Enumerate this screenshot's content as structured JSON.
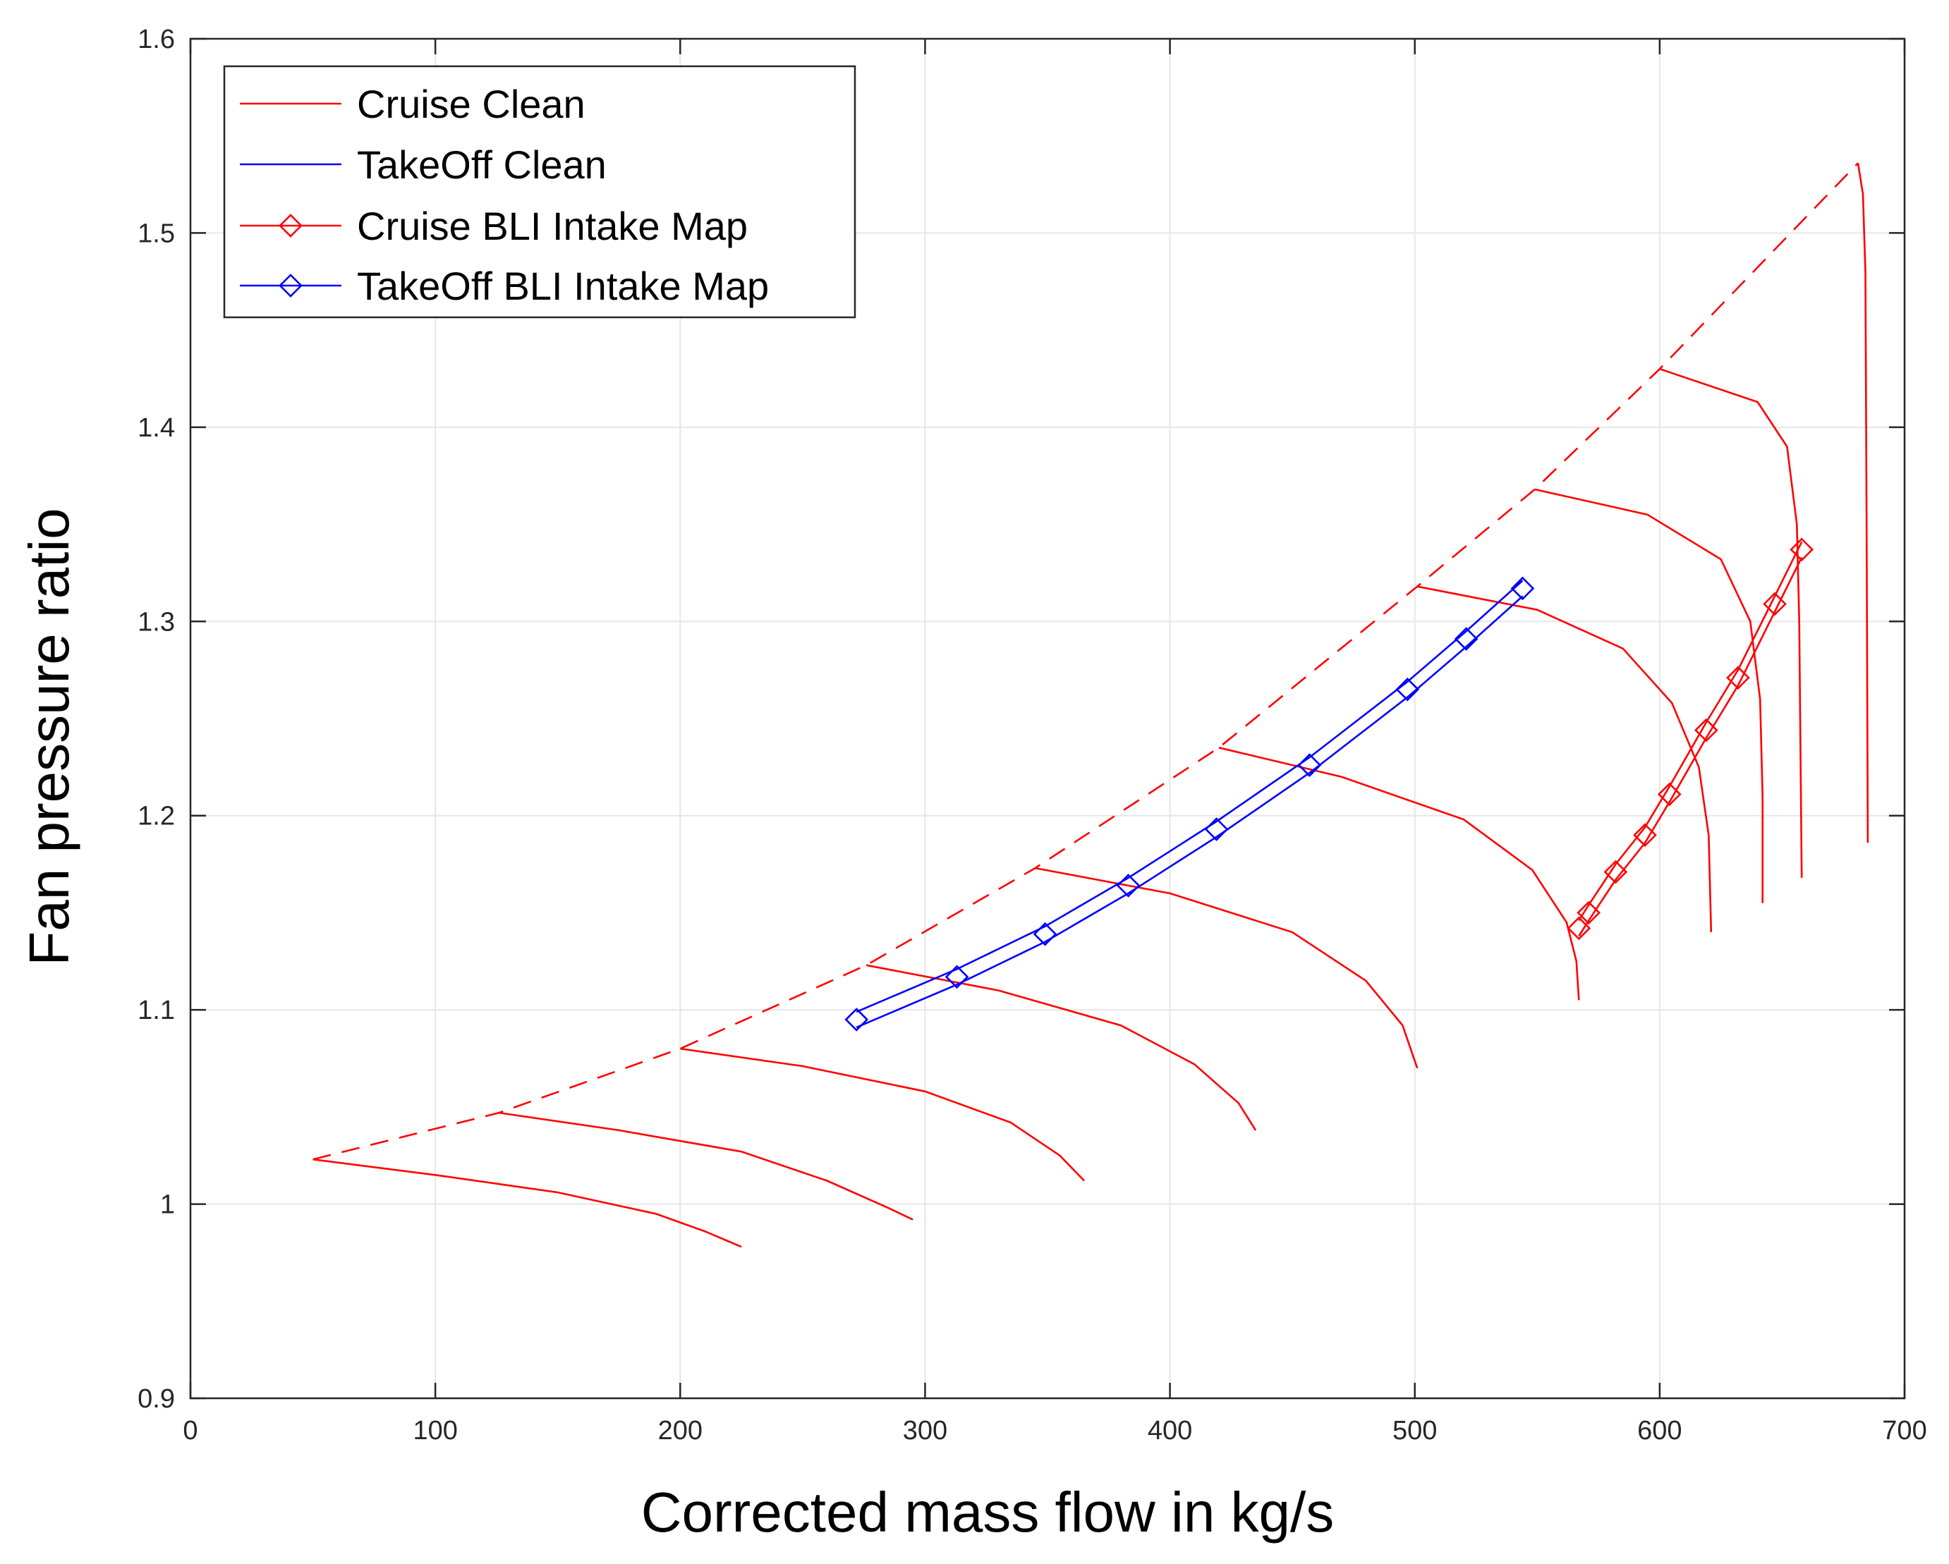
{
  "chart_data": {
    "type": "line",
    "xlabel": "Corrected mass flow in kg/s",
    "ylabel": "Fan pressure ratio",
    "xlim": [
      0,
      700
    ],
    "ylim": [
      0.9,
      1.6
    ],
    "xticks": [
      0,
      100,
      200,
      300,
      400,
      500,
      600,
      700
    ],
    "yticks": [
      0.9,
      1,
      1.1,
      1.2,
      1.3,
      1.4,
      1.5,
      1.6
    ],
    "xtick_labels": [
      "0",
      "100",
      "200",
      "300",
      "400",
      "500",
      "600",
      "700"
    ],
    "ytick_labels": [
      "0.9",
      "1",
      "1.1",
      "1.2",
      "1.3",
      "1.4",
      "1.5",
      "1.6"
    ],
    "grid": true,
    "legend_position": "top-left",
    "colors": {
      "red": "#ff0000",
      "blue": "#0000ff",
      "grid": "#e6e6e6",
      "axis": "#262626"
    },
    "legend": [
      {
        "label": "Cruise Clean",
        "color": "#ff0000",
        "marker": "none"
      },
      {
        "label": "TakeOff Clean",
        "color": "#0000ff",
        "marker": "none"
      },
      {
        "label": "Cruise BLI Intake Map",
        "color": "#ff0000",
        "marker": "diamond"
      },
      {
        "label": "TakeOff BLI Intake Map",
        "color": "#0000ff",
        "marker": "diamond"
      }
    ],
    "surge_line": {
      "color": "#ff0000",
      "style": "dashed",
      "x": [
        50,
        126,
        200,
        276,
        345,
        420,
        501,
        549,
        600,
        681
      ],
      "y": [
        1.023,
        1.047,
        1.08,
        1.123,
        1.173,
        1.235,
        1.318,
        1.368,
        1.43,
        1.536
      ]
    },
    "speed_lines": [
      {
        "x": [
          50,
          100,
          150,
          190,
          210,
          225
        ],
        "y": [
          1.023,
          1.015,
          1.006,
          0.995,
          0.986,
          0.978
        ]
      },
      {
        "x": [
          126,
          175,
          225,
          260,
          285,
          295
        ],
        "y": [
          1.047,
          1.038,
          1.027,
          1.012,
          0.998,
          0.992
        ]
      },
      {
        "x": [
          200,
          250,
          300,
          335,
          355,
          365
        ],
        "y": [
          1.08,
          1.071,
          1.058,
          1.042,
          1.025,
          1.012
        ]
      },
      {
        "x": [
          276,
          330,
          380,
          410,
          428,
          435
        ],
        "y": [
          1.123,
          1.11,
          1.092,
          1.072,
          1.052,
          1.038
        ]
      },
      {
        "x": [
          345,
          400,
          450,
          480,
          495,
          501
        ],
        "y": [
          1.173,
          1.16,
          1.14,
          1.115,
          1.092,
          1.07
        ]
      },
      {
        "x": [
          420,
          470,
          520,
          548,
          562,
          566,
          567
        ],
        "y": [
          1.235,
          1.22,
          1.198,
          1.172,
          1.145,
          1.125,
          1.105
        ]
      },
      {
        "x": [
          501,
          550,
          585,
          605,
          616,
          620,
          621
        ],
        "y": [
          1.318,
          1.306,
          1.286,
          1.258,
          1.225,
          1.19,
          1.14
        ]
      },
      {
        "x": [
          549,
          595,
          625,
          637,
          641,
          642,
          642
        ],
        "y": [
          1.368,
          1.355,
          1.332,
          1.3,
          1.26,
          1.21,
          1.155
        ]
      },
      {
        "x": [
          600,
          640,
          652,
          656,
          657,
          658
        ],
        "y": [
          1.43,
          1.413,
          1.39,
          1.35,
          1.3,
          1.168
        ]
      },
      {
        "x": [
          681,
          683,
          684,
          684.5,
          685
        ],
        "y": [
          1.536,
          1.52,
          1.48,
          1.35,
          1.186
        ]
      }
    ],
    "series": [
      {
        "name": "Cruise BLI Intake Map",
        "color": "#ff0000",
        "marker": "diamond",
        "x": [
          567,
          571,
          582,
          594,
          604,
          619,
          632,
          647,
          658
        ],
        "y": [
          1.142,
          1.15,
          1.171,
          1.19,
          1.211,
          1.244,
          1.271,
          1.309,
          1.337
        ]
      },
      {
        "name": "TakeOff BLI Intake Map",
        "color": "#0000ff",
        "marker": "diamond",
        "x": [
          272,
          313,
          349,
          383,
          419,
          457,
          497,
          521,
          544
        ],
        "y": [
          1.095,
          1.117,
          1.139,
          1.164,
          1.193,
          1.226,
          1.265,
          1.291,
          1.317
        ]
      }
    ]
  }
}
